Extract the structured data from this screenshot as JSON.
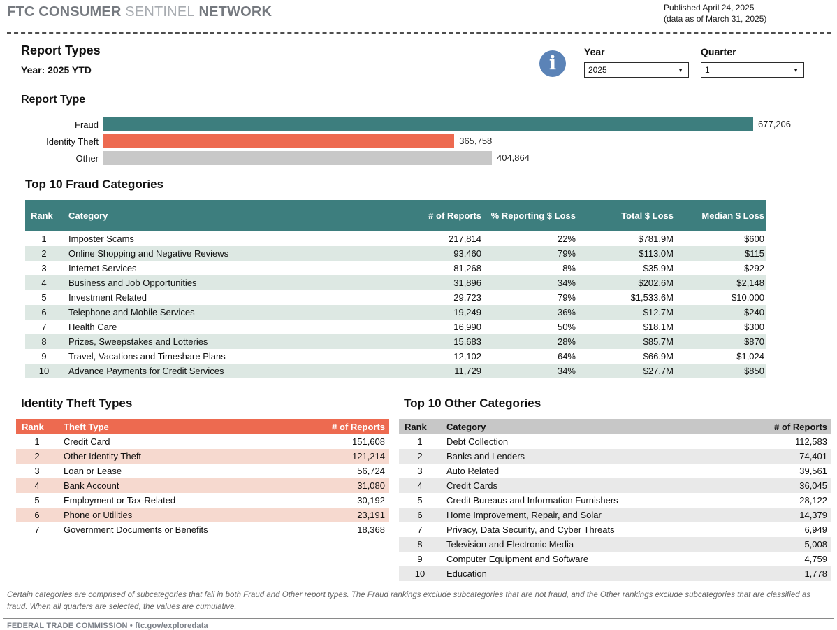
{
  "header": {
    "brand_bold1": "FTC CONSUMER",
    "brand_light": "SENTINEL",
    "brand_bold2": "NETWORK",
    "published_line1": "Published April 24, 2025",
    "published_line2": "(data as of March 31, 2025)"
  },
  "controls": {
    "title": "Report Types",
    "subtitle": "Year: 2025 YTD",
    "year_label": "Year",
    "year_value": "2025",
    "quarter_label": "Quarter",
    "quarter_value": "1"
  },
  "chart_data": {
    "type": "bar",
    "orientation": "horizontal",
    "title": "Report Type",
    "categories": [
      "Fraud",
      "Identity Theft",
      "Other"
    ],
    "values": [
      677206,
      365758,
      404864
    ],
    "value_labels": [
      "677,206",
      "365,758",
      "404,864"
    ],
    "bar_colors": [
      "#3d7e7e",
      "#ed6a50",
      "#c8c8c8"
    ],
    "xlim": [
      0,
      677206
    ],
    "grid": false,
    "legend": false
  },
  "fraud_table": {
    "title": "Top 10 Fraud Categories",
    "header_bg": "#3d7e7e",
    "headers": [
      "Rank",
      "Category",
      "# of Reports",
      "% Reporting $ Loss",
      "Total $ Loss",
      "Median $ Loss"
    ],
    "rows": [
      [
        "1",
        "Imposter Scams",
        "217,814",
        "22%",
        "$781.9M",
        "$600"
      ],
      [
        "2",
        "Online Shopping and Negative Reviews",
        "93,460",
        "79%",
        "$113.0M",
        "$115"
      ],
      [
        "3",
        "Internet Services",
        "81,268",
        "8%",
        "$35.9M",
        "$292"
      ],
      [
        "4",
        "Business and Job Opportunities",
        "31,896",
        "34%",
        "$202.6M",
        "$2,148"
      ],
      [
        "5",
        "Investment Related",
        "29,723",
        "79%",
        "$1,533.6M",
        "$10,000"
      ],
      [
        "6",
        "Telephone and Mobile Services",
        "19,249",
        "36%",
        "$12.7M",
        "$240"
      ],
      [
        "7",
        "Health Care",
        "16,990",
        "50%",
        "$18.1M",
        "$300"
      ],
      [
        "8",
        "Prizes, Sweepstakes and Lotteries",
        "15,683",
        "28%",
        "$85.7M",
        "$870"
      ],
      [
        "9",
        "Travel, Vacations and Timeshare Plans",
        "12,102",
        "64%",
        "$66.9M",
        "$1,024"
      ],
      [
        "10",
        "Advance Payments for Credit Services",
        "11,729",
        "34%",
        "$27.7M",
        "$850"
      ]
    ]
  },
  "identity_table": {
    "title": "Identity Theft Types",
    "header_bg": "#ed6a50",
    "headers": [
      "Rank",
      "Theft Type",
      "# of Reports"
    ],
    "rows": [
      [
        "1",
        "Credit Card",
        "151,608"
      ],
      [
        "2",
        "Other Identity Theft",
        "121,214"
      ],
      [
        "3",
        "Loan or Lease",
        "56,724"
      ],
      [
        "4",
        "Bank Account",
        "31,080"
      ],
      [
        "5",
        "Employment or Tax-Related",
        "30,192"
      ],
      [
        "6",
        "Phone or Utilities",
        "23,191"
      ],
      [
        "7",
        "Government Documents or Benefits",
        "18,368"
      ]
    ]
  },
  "other_table": {
    "title": "Top 10 Other Categories",
    "header_bg": "#c7c7c7",
    "headers": [
      "Rank",
      "Category",
      "# of Reports"
    ],
    "rows": [
      [
        "1",
        "Debt Collection",
        "112,583"
      ],
      [
        "2",
        "Banks and Lenders",
        "74,401"
      ],
      [
        "3",
        "Auto Related",
        "39,561"
      ],
      [
        "4",
        "Credit Cards",
        "36,045"
      ],
      [
        "5",
        "Credit Bureaus and Information Furnishers",
        "28,122"
      ],
      [
        "6",
        "Home Improvement, Repair, and Solar",
        "14,379"
      ],
      [
        "7",
        "Privacy, Data Security, and Cyber Threats",
        "6,949"
      ],
      [
        "8",
        "Television and Electronic Media",
        "5,008"
      ],
      [
        "9",
        "Computer Equipment and Software",
        "4,759"
      ],
      [
        "10",
        "Education",
        "1,778"
      ]
    ]
  },
  "footnote": "Certain categories are comprised of subcategories that fall in both Fraud and Other report types. The Fraud rankings exclude subcategories that are not fraud, and the Other rankings exclude subcategories that are classified as fraud. When all quarters are selected, the values are cumulative.",
  "footer": "FEDERAL TRADE COMMISSION • ftc.gov/exploredata"
}
